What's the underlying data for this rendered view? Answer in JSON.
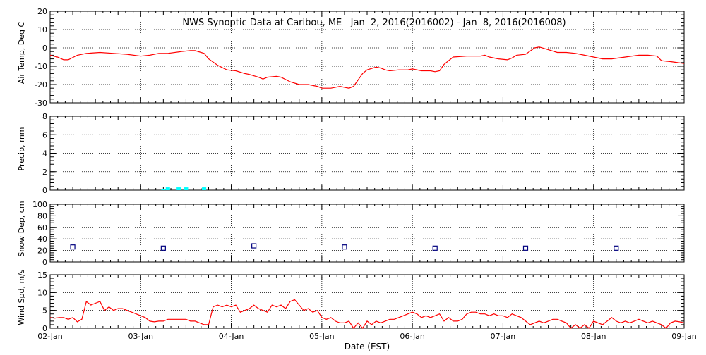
{
  "title": "NWS Synoptic Data at Caribou, ME   Jan  2, 2016(2016002) - Jan  8, 2016(2016008)",
  "xlabel": "Date (EST)",
  "x_ticks": [
    "02-Jan",
    "03-Jan",
    "04-Jan",
    "05-Jan",
    "06-Jan",
    "07-Jan",
    "08-Jan",
    "09-Jan"
  ],
  "colors": {
    "line": "#ff0000",
    "precip": "#00ffff",
    "snow": "#00007f",
    "axis": "#000000"
  },
  "chart_data": [
    {
      "type": "line",
      "ylabel": "Air Temp, Deg C",
      "ylim": [
        -30,
        20
      ],
      "yticks": [
        20,
        10,
        0,
        -10,
        -20,
        -30
      ],
      "x_unit": "days since 02-Jan 00:00 EST",
      "x": [
        0.0,
        0.08,
        0.15,
        0.2,
        0.3,
        0.4,
        0.55,
        0.7,
        0.85,
        1.0,
        1.1,
        1.2,
        1.3,
        1.45,
        1.55,
        1.6,
        1.7,
        1.75,
        1.85,
        1.95,
        2.05,
        2.15,
        2.2,
        2.3,
        2.35,
        2.4,
        2.5,
        2.55,
        2.65,
        2.75,
        2.85,
        2.95,
        3.0,
        3.1,
        3.2,
        3.3,
        3.35,
        3.45,
        3.5,
        3.6,
        3.65,
        3.7,
        3.75,
        3.85,
        3.95,
        4.0,
        4.1,
        4.2,
        4.25,
        4.3,
        4.35,
        4.45,
        4.6,
        4.75,
        4.8,
        4.85,
        4.95,
        5.05,
        5.1,
        5.15,
        5.25,
        5.35,
        5.4,
        5.5,
        5.6,
        5.7,
        5.8,
        5.9,
        6.0,
        6.1,
        6.2,
        6.35,
        6.5,
        6.6,
        6.7,
        6.75,
        6.85,
        7.0
      ],
      "values": [
        -4,
        -5,
        -6.5,
        -6.5,
        -4,
        -3,
        -2.5,
        -3,
        -3.5,
        -4.5,
        -4,
        -3,
        -3,
        -2,
        -1.5,
        -1.5,
        -3,
        -6,
        -9.5,
        -12,
        -12.5,
        -14,
        -14.5,
        -16,
        -17,
        -16,
        -15.5,
        -16,
        -18.5,
        -20,
        -20,
        -21,
        -22,
        -22,
        -21,
        -22,
        -21,
        -14,
        -12,
        -10.5,
        -11,
        -12,
        -12.5,
        -12,
        -12,
        -11.5,
        -12.5,
        -12.5,
        -13,
        -12.5,
        -9,
        -5,
        -4.5,
        -4.5,
        -4,
        -5,
        -6,
        -6.5,
        -5.5,
        -4,
        -3.5,
        0,
        0.5,
        -1,
        -2.5,
        -2.5,
        -3,
        -4,
        -5,
        -6,
        -6,
        -5,
        -4,
        -4,
        -4.5,
        -7,
        -7.5,
        -8.5
      ]
    },
    {
      "type": "bar",
      "ylabel": "Precip, mm",
      "ylim": [
        0,
        8
      ],
      "yticks": [
        8,
        6,
        4,
        2,
        0
      ],
      "x_unit": "days since 02-Jan 00:00 EST",
      "x": [
        1.25,
        1.3,
        1.42,
        1.5,
        1.7
      ],
      "values": [
        0.1,
        0.3,
        0.3,
        0.3,
        0.3
      ]
    },
    {
      "type": "scatter",
      "ylabel": "Snow Dep, cm",
      "ylim": [
        0,
        100
      ],
      "yticks": [
        100,
        80,
        60,
        40,
        20,
        0
      ],
      "x_unit": "days since 02-Jan 00:00 EST",
      "x": [
        0.25,
        1.25,
        2.25,
        3.25,
        4.25,
        5.25,
        6.25
      ],
      "values": [
        26,
        24,
        28,
        26,
        24,
        24,
        24
      ]
    },
    {
      "type": "line",
      "ylabel": "Wind Spd, m/s",
      "ylim": [
        0,
        15
      ],
      "yticks": [
        15,
        10,
        5,
        0
      ],
      "x_unit": "days since 02-Jan 00:00 EST",
      "x": [
        0.0,
        0.05,
        0.1,
        0.15,
        0.2,
        0.25,
        0.3,
        0.35,
        0.4,
        0.45,
        0.5,
        0.55,
        0.6,
        0.65,
        0.7,
        0.75,
        0.8,
        0.85,
        0.9,
        0.95,
        1.0,
        1.05,
        1.1,
        1.15,
        1.2,
        1.25,
        1.3,
        1.35,
        1.4,
        1.45,
        1.5,
        1.55,
        1.6,
        1.65,
        1.7,
        1.75,
        1.8,
        1.85,
        1.9,
        1.95,
        2.0,
        2.05,
        2.1,
        2.15,
        2.2,
        2.25,
        2.3,
        2.35,
        2.4,
        2.45,
        2.5,
        2.55,
        2.6,
        2.65,
        2.7,
        2.75,
        2.8,
        2.85,
        2.9,
        2.95,
        3.0,
        3.05,
        3.1,
        3.15,
        3.2,
        3.25,
        3.3,
        3.35,
        3.4,
        3.45,
        3.5,
        3.55,
        3.6,
        3.65,
        3.7,
        3.75,
        3.8,
        3.85,
        3.9,
        3.95,
        4.0,
        4.05,
        4.1,
        4.15,
        4.2,
        4.25,
        4.3,
        4.35,
        4.4,
        4.45,
        4.5,
        4.55,
        4.6,
        4.65,
        4.7,
        4.75,
        4.8,
        4.85,
        4.9,
        4.95,
        5.0,
        5.05,
        5.1,
        5.15,
        5.2,
        5.25,
        5.3,
        5.35,
        5.4,
        5.45,
        5.5,
        5.55,
        5.6,
        5.65,
        5.7,
        5.75,
        5.8,
        5.85,
        5.9,
        5.95,
        6.0,
        6.05,
        6.1,
        6.15,
        6.2,
        6.25,
        6.3,
        6.35,
        6.4,
        6.45,
        6.5,
        6.55,
        6.6,
        6.65,
        6.7,
        6.75,
        6.8,
        6.85,
        6.9,
        6.95,
        7.0
      ],
      "values": [
        3,
        2.8,
        3,
        3,
        2.5,
        3,
        1.8,
        2.5,
        7.5,
        6.5,
        7,
        7.5,
        5,
        6,
        5,
        5.5,
        5.5,
        5,
        4.5,
        4,
        3.5,
        3,
        2,
        1.8,
        2,
        2,
        2.5,
        2.5,
        2.5,
        2.5,
        2.5,
        2,
        2,
        1.5,
        1,
        1,
        6,
        6.5,
        6,
        6.5,
        6,
        6.5,
        4.5,
        5,
        5.5,
        6.5,
        5.5,
        5,
        4.5,
        6.5,
        6,
        6.5,
        5.5,
        7.5,
        8,
        6.5,
        5,
        5.5,
        4.5,
        5,
        3,
        2.5,
        3,
        2,
        1.5,
        1.5,
        2,
        0,
        1.5,
        0,
        2,
        1,
        2,
        1.5,
        2,
        2.5,
        2.5,
        3,
        3.5,
        4,
        4.5,
        4,
        3,
        3.5,
        3,
        3.5,
        4,
        2,
        3,
        2,
        2,
        2.5,
        4,
        4.5,
        4.5,
        4,
        4,
        3.5,
        4,
        3.5,
        3.5,
        3,
        4,
        3.5,
        3,
        2,
        1,
        1.5,
        2,
        1.5,
        2,
        2.5,
        2.5,
        2,
        1.5,
        0,
        1,
        0,
        1,
        0,
        2,
        1.5,
        1,
        2,
        3,
        2,
        1.5,
        2,
        1.5,
        2,
        2.5,
        2,
        1.5,
        2,
        1.5,
        1,
        0,
        1.5,
        2,
        1.8,
        1.5
      ]
    }
  ]
}
